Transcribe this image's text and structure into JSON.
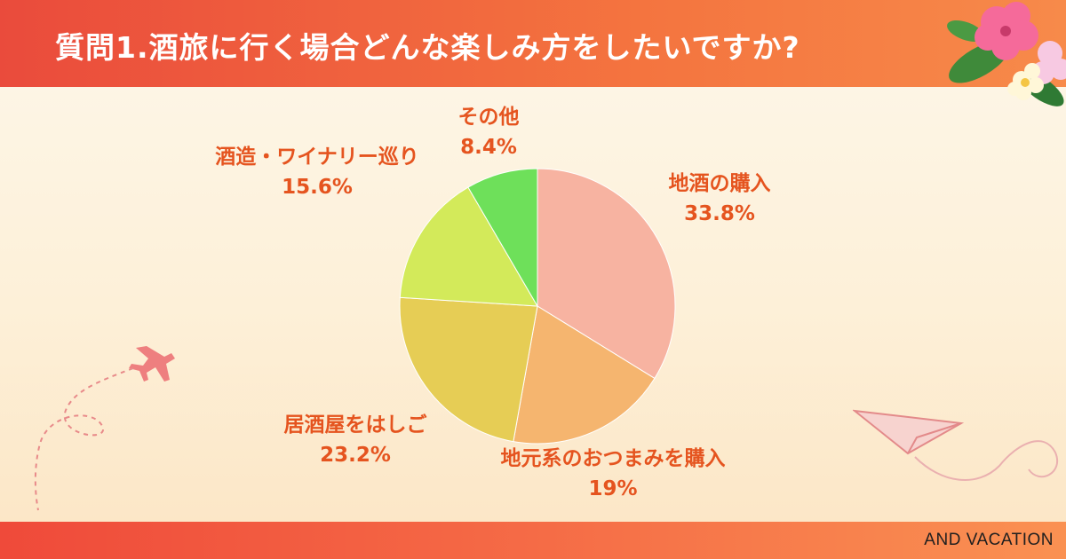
{
  "title": "質問1.酒旅に行く場合どんな楽しみ方をしたいですか?",
  "footer_brand": "AND VACATION",
  "colors": {
    "header_red": "#ea4b3c",
    "header_orange": "#f78a4a",
    "label_orange": "#e5541f"
  },
  "chart_data": {
    "type": "pie",
    "slices": [
      {
        "label": "地酒の購入",
        "value": 33.8,
        "value_label": "33.8%",
        "color": "#f7b3a1"
      },
      {
        "label": "地元系のおつまみを購入",
        "value": 19,
        "value_label": "19%",
        "color": "#f5b56f"
      },
      {
        "label": "居酒屋をはしご",
        "value": 23.2,
        "value_label": "23.2%",
        "color": "#e6cd55"
      },
      {
        "label": "酒造・ワイナリー巡り",
        "value": 15.6,
        "value_label": "15.6%",
        "color": "#d3ea5a"
      },
      {
        "label": "その他",
        "value": 8.4,
        "value_label": "8.4%",
        "color": "#6ee05a"
      }
    ],
    "start_angle": "12 o'clock",
    "direction": "clockwise",
    "legend": "none"
  },
  "decorations": [
    "hibiscus-flowers",
    "airplane-icon",
    "paper-plane-icon"
  ]
}
